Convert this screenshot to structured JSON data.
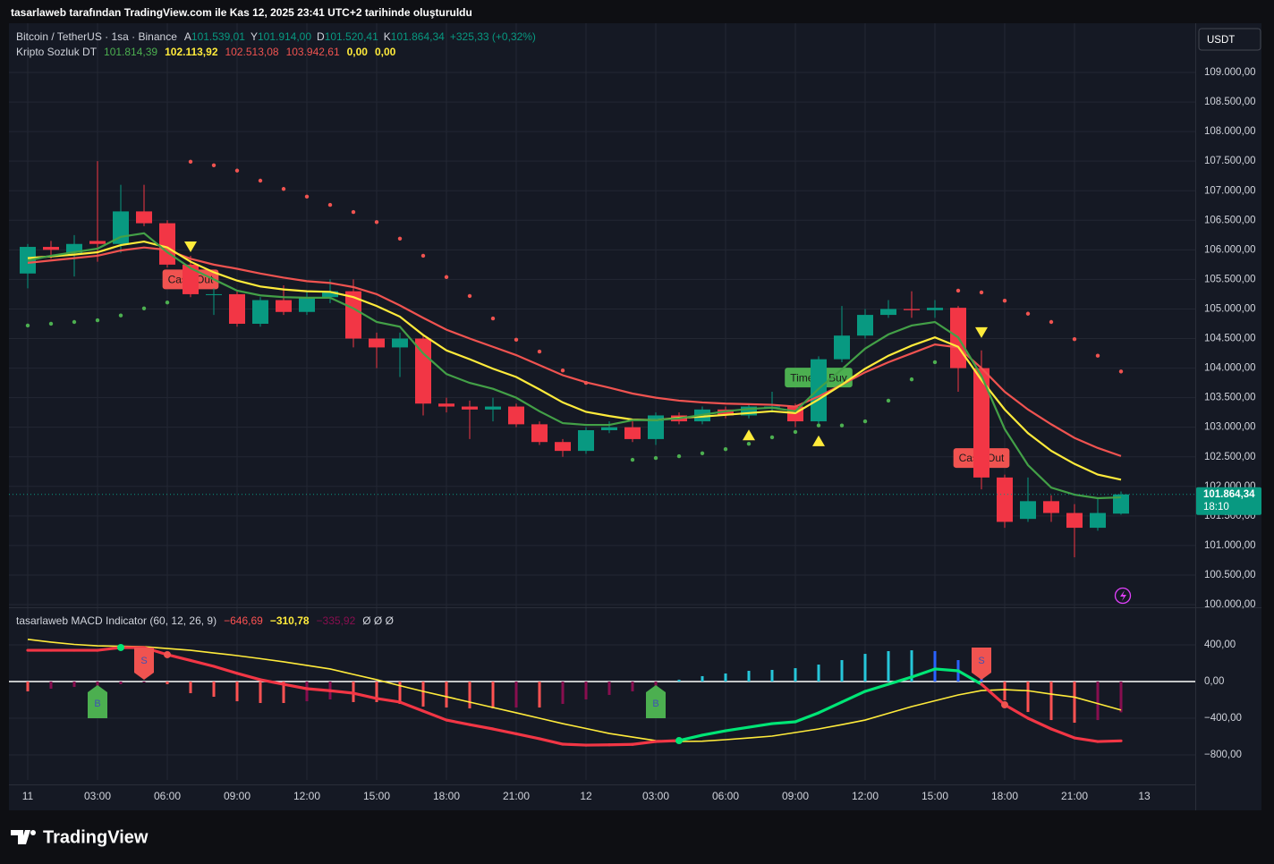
{
  "header": {
    "watermark": "tasarlaweb tarafından TradingView.com ile Kas 12, 2025 23:41 UTC+2 tarihinde oluşturuldu",
    "brand": "TradingView"
  },
  "chart_data": [
    {
      "type": "candlestick",
      "symbol": "Bitcoin / TetherUS · 1sa · Binance",
      "ohlc_legend": [
        {
          "key": "A",
          "value": "101.539,01"
        },
        {
          "key": "Y",
          "value": "101.914,00"
        },
        {
          "key": "D",
          "value": "101.520,41"
        },
        {
          "key": "K",
          "value": "101.864,34"
        }
      ],
      "change": "+325,33 (+0,32%)",
      "currency": "USDT",
      "indicator": {
        "name": "Kripto Sozluk DT",
        "values": [
          {
            "text": "101.814,39",
            "color": "#4caf50"
          },
          {
            "text": "102.113,92",
            "color": "#ffeb3b"
          },
          {
            "text": "102.513,08",
            "color": "#f05350"
          },
          {
            "text": "103.942,61",
            "color": "#f05350"
          },
          {
            "text": "0,00",
            "color": "#ffeb3b"
          },
          {
            "text": "0,00",
            "color": "#ffeb3b"
          }
        ]
      },
      "categories": [
        "11",
        null,
        null,
        "03:00",
        null,
        null,
        "06:00",
        null,
        null,
        "09:00",
        null,
        null,
        "12:00",
        null,
        null,
        "15:00",
        null,
        null,
        "18:00",
        null,
        null,
        "21:00",
        null,
        null,
        "12",
        null,
        null,
        "03:00",
        null,
        null,
        "06:00",
        null,
        null,
        "09:00",
        null,
        null,
        "12:00",
        null,
        null,
        "15:00",
        null,
        null,
        "18:00",
        null,
        null,
        "21:00",
        null,
        null
      ],
      "x_end_label": "13",
      "open": [
        105600,
        106050,
        105950,
        106150,
        106100,
        106650,
        106450,
        105750,
        105250,
        105250,
        104750,
        105150,
        104950,
        105200,
        105300,
        104500,
        104350,
        104500,
        103400,
        103350,
        103300,
        103350,
        103050,
        102750,
        102600,
        102950,
        103000,
        102800,
        103200,
        103100,
        103300,
        103200,
        103350,
        103350,
        103100,
        104150,
        104550,
        104900,
        105000,
        104980,
        105020,
        104000,
        102150,
        101450,
        101750,
        101550,
        101300,
        101539.01
      ],
      "high": [
        106100,
        106150,
        106250,
        107500,
        107100,
        107100,
        106500,
        105900,
        105350,
        105300,
        105200,
        105400,
        105300,
        105500,
        105500,
        104600,
        104600,
        104550,
        103500,
        103450,
        103500,
        103400,
        103100,
        102800,
        103000,
        103100,
        103100,
        103250,
        103250,
        103350,
        103350,
        103400,
        103600,
        103400,
        104200,
        105050,
        105000,
        105150,
        105300,
        105150,
        105050,
        104300,
        102200,
        102150,
        101850,
        101700,
        101800,
        101914
      ],
      "low": [
        105350,
        105850,
        105550,
        105800,
        105950,
        106400,
        105700,
        105200,
        104900,
        104700,
        104700,
        104900,
        104900,
        105100,
        104350,
        104000,
        103850,
        103200,
        103250,
        102800,
        103100,
        103000,
        102700,
        102500,
        102550,
        102900,
        102750,
        102700,
        103050,
        103050,
        103150,
        103150,
        103250,
        103000,
        103050,
        104100,
        104500,
        104850,
        104850,
        104850,
        103600,
        101950,
        101300,
        101400,
        101400,
        100800,
        101250,
        101520.41
      ],
      "close": [
        106050,
        106000,
        106100,
        106100,
        106650,
        106450,
        105750,
        105250,
        105250,
        104750,
        105150,
        104950,
        105200,
        105300,
        104500,
        104350,
        104500,
        103400,
        103350,
        103300,
        103350,
        103050,
        102750,
        102600,
        102950,
        103000,
        102800,
        103200,
        103100,
        103300,
        103200,
        103350,
        103350,
        103100,
        104150,
        104550,
        104900,
        105000,
        104980,
        105020,
        104000,
        102150,
        101400,
        101750,
        101550,
        101300,
        101550,
        101864.34
      ],
      "up_color": "#089981",
      "down_color": "#f23645",
      "lines": [
        {
          "color": "#f05350",
          "values": [
            105780,
            105820,
            105860,
            105900,
            105990,
            106040,
            106000,
            105850,
            105750,
            105680,
            105600,
            105530,
            105470,
            105440,
            105370,
            105250,
            105060,
            104850,
            104650,
            104500,
            104360,
            104220,
            104050,
            103880,
            103760,
            103670,
            103570,
            103500,
            103450,
            103420,
            103400,
            103390,
            103380,
            103350,
            103520,
            103720,
            103930,
            104100,
            104250,
            104400,
            104350,
            104000,
            103600,
            103300,
            103050,
            102820,
            102650,
            102513.08
          ]
        },
        {
          "color": "#ffeb3b",
          "values": [
            105860,
            105890,
            105920,
            105960,
            106080,
            106140,
            106040,
            105800,
            105620,
            105480,
            105380,
            105330,
            105300,
            105290,
            105200,
            105050,
            104870,
            104560,
            104300,
            104150,
            103990,
            103850,
            103640,
            103420,
            103260,
            103190,
            103130,
            103120,
            103160,
            103180,
            103210,
            103240,
            103270,
            103240,
            103470,
            103720,
            103990,
            104210,
            104380,
            104520,
            104360,
            103800,
            103300,
            102900,
            102600,
            102380,
            102200,
            102113.92
          ]
        },
        {
          "color": "#43a047",
          "values": [
            105820,
            105900,
            105960,
            106020,
            106220,
            106280,
            105960,
            105690,
            105500,
            105310,
            105230,
            105200,
            105190,
            105190,
            105010,
            104780,
            104700,
            104250,
            103900,
            103750,
            103650,
            103500,
            103270,
            103070,
            103040,
            103040,
            103120,
            103120,
            103150,
            103210,
            103270,
            103310,
            103330,
            103270,
            103650,
            103980,
            104330,
            104570,
            104720,
            104780,
            104520,
            103870,
            102970,
            102360,
            101980,
            101860,
            101800,
            101814.39
          ]
        }
      ],
      "sar": [
        {
          "color": "#4caf50",
          "values": [
            104720,
            104750,
            104780,
            104810,
            104890,
            105010,
            105110,
            null,
            null,
            null,
            null,
            null,
            null,
            null,
            null,
            null,
            null,
            null,
            null,
            null,
            null,
            null,
            null,
            null,
            null,
            null,
            102450,
            102480,
            102510,
            102560,
            102630,
            102720,
            102830,
            102920,
            103030,
            103030,
            103100,
            103450,
            103810,
            104100,
            null,
            null,
            null,
            null,
            null,
            null,
            null,
            null
          ]
        },
        {
          "color": "#f05350",
          "values": [
            null,
            null,
            null,
            null,
            null,
            null,
            null,
            107490,
            107430,
            107340,
            107170,
            107030,
            106900,
            106760,
            106640,
            106470,
            106190,
            105900,
            105540,
            105220,
            104840,
            104480,
            104280,
            103960,
            103750,
            null,
            null,
            null,
            null,
            null,
            null,
            null,
            null,
            null,
            null,
            null,
            null,
            null,
            null,
            null,
            105310,
            105280,
            105140,
            104920,
            104780,
            104490,
            104210,
            103942.61
          ]
        }
      ],
      "markers": [
        {
          "index": 7,
          "direction": "down",
          "price": 106050,
          "color": "#ffeb3b"
        },
        {
          "index": 31,
          "direction": "up",
          "price": 102870,
          "color": "#ffeb3b"
        },
        {
          "index": 34,
          "direction": "up",
          "price": 102770,
          "color": "#ffeb3b"
        },
        {
          "index": 41,
          "direction": "down",
          "price": 104600,
          "color": "#ffeb3b"
        }
      ],
      "labels": [
        {
          "index": 7,
          "price": 105500,
          "text": "Cash Out",
          "color": "#f05350"
        },
        {
          "index": 34,
          "price": 103840,
          "text": "Time to Buy",
          "color": "#4caf50"
        },
        {
          "index": 41,
          "price": 102480,
          "text": "Cash Out",
          "color": "#f05350"
        }
      ],
      "countdown": "18:10",
      "ylim": [
        99955,
        109832
      ],
      "yticks": [
        {
          "value": 100000,
          "label": "100.000,00"
        },
        {
          "value": 100500,
          "label": "100.500,00"
        },
        {
          "value": 101000,
          "label": "101.000,00"
        },
        {
          "value": 101500,
          "label": "101.500,00"
        },
        {
          "value": 102000,
          "label": "102.000,00"
        },
        {
          "value": 102500,
          "label": "102.500,00"
        },
        {
          "value": 103000,
          "label": "103.000,00"
        },
        {
          "value": 103500,
          "label": "103.500,00"
        },
        {
          "value": 104000,
          "label": "104.000,00"
        },
        {
          "value": 104500,
          "label": "104.500,00"
        },
        {
          "value": 105000,
          "label": "105.000,00"
        },
        {
          "value": 105500,
          "label": "105.500,00"
        },
        {
          "value": 106000,
          "label": "106.000,00"
        },
        {
          "value": 106500,
          "label": "106.500,00"
        },
        {
          "value": 107000,
          "label": "107.000,00"
        },
        {
          "value": 107500,
          "label": "107.500,00"
        },
        {
          "value": 108000,
          "label": "108.000,00"
        },
        {
          "value": 108500,
          "label": "108.500,00"
        },
        {
          "value": 109000,
          "label": "109.000,00"
        }
      ],
      "grid": true
    },
    {
      "type": "macd",
      "title": "tasarlaweb MACD Indicator (60, 12, 26, 9)",
      "legend_values": [
        {
          "text": "−646,69",
          "color": "#ff5252"
        },
        {
          "text": "−310,78",
          "color": "#ffeb3b"
        },
        {
          "text": "−335,92",
          "color": "#880e4f"
        },
        {
          "text": "Ø Ø Ø",
          "color": "#d1d4dc"
        }
      ],
      "macd": {
        "color": "#f23645",
        "above_color": "#00e676",
        "values": [
          341,
          341,
          341,
          341,
          371,
          371,
          293,
          230,
          166,
          90,
          20,
          -30,
          -78,
          -100,
          -127,
          -185,
          -224,
          -322,
          -420,
          -470,
          -517,
          -570,
          -624,
          -683,
          -693,
          -690,
          -685,
          -654,
          -644,
          -585,
          -537,
          -498,
          -459,
          -439,
          -341,
          -224,
          -107,
          -29,
          49,
          137,
          117,
          -29,
          -254,
          -400,
          -517,
          -615,
          -654,
          -646.69
        ]
      },
      "signal": {
        "color": "#ffeb3b",
        "values": [
          460,
          430,
          405,
          390,
          385,
          380,
          360,
          341,
          312,
          283,
          250,
          215,
          176,
          137,
          78,
          20,
          -45,
          -107,
          -165,
          -224,
          -283,
          -341,
          -400,
          -459,
          -512,
          -566,
          -605,
          -644,
          -654,
          -650,
          -634,
          -615,
          -595,
          -556,
          -517,
          -470,
          -420,
          -346,
          -273,
          -210,
          -146,
          -98,
          -88,
          -100,
          -137,
          -170,
          -240,
          -310.78
        ]
      },
      "histogram": {
        "values": [
          -107,
          -78,
          -59,
          -49,
          -29,
          -10,
          -29,
          -127,
          -166,
          -215,
          -234,
          -234,
          -215,
          -195,
          -224,
          -224,
          -244,
          -273,
          -283,
          -293,
          -293,
          -283,
          -283,
          -244,
          -195,
          -146,
          -107,
          -59,
          20,
          59,
          88,
          117,
          127,
          146,
          185,
          234,
          302,
          332,
          341,
          332,
          234,
          98,
          -205,
          -332,
          -420,
          -449,
          -420,
          -335.92
        ],
        "colors": {
          "pos_up": "#26c6da",
          "pos_down": "#2962ff",
          "neg_down": "#ff5252",
          "neg_up": "#880e4f"
        }
      },
      "signals": [
        {
          "index": 3,
          "side": "buy",
          "text": "B",
          "color": "#4caf50"
        },
        {
          "index": 5,
          "side": "sell",
          "text": "S",
          "color": "#f05350"
        },
        {
          "index": 27,
          "side": "buy",
          "text": "B",
          "color": "#4caf50"
        },
        {
          "index": 41,
          "side": "sell",
          "text": "S",
          "color": "#f05350"
        }
      ],
      "cross_dots": [
        {
          "index": 4,
          "color": "#00e676"
        },
        {
          "index": 6,
          "color": "#f05350"
        },
        {
          "index": 28,
          "color": "#00e676"
        },
        {
          "index": 42,
          "color": "#f05350"
        }
      ],
      "ylim": [
        -1073,
        800
      ],
      "yticks": [
        {
          "value": 400,
          "label": "400,00"
        },
        {
          "value": 0,
          "label": "0,00"
        },
        {
          "value": -400,
          "label": "−400,00"
        },
        {
          "value": -800,
          "label": "−800,00"
        }
      ],
      "grid": true
    }
  ]
}
